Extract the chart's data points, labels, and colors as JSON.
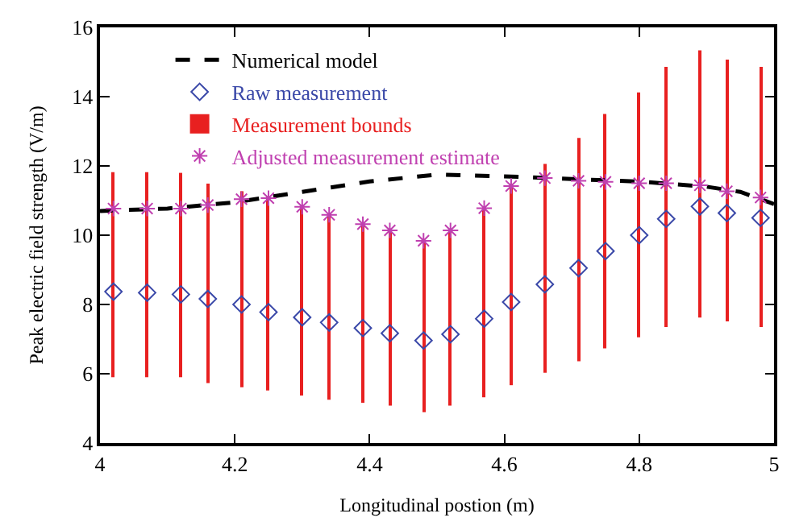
{
  "chart_data": {
    "type": "scatter",
    "xlabel": "Longitudinal postion (m)",
    "ylabel": "Peak electric field strength (V/m)",
    "x": [
      4.02,
      4.07,
      4.12,
      4.16,
      4.21,
      4.25,
      4.3,
      4.34,
      4.39,
      4.43,
      4.48,
      4.52,
      4.57,
      4.61,
      4.66,
      4.71,
      4.75,
      4.8,
      4.84,
      4.89,
      4.93,
      4.98
    ],
    "series": [
      {
        "name": "Numerical model",
        "type": "line",
        "color": "#000000",
        "line_style": "dashed",
        "marker": "none",
        "x": [
          4.0,
          4.1,
          4.2,
          4.3,
          4.4,
          4.5,
          4.6,
          4.7,
          4.8,
          4.9,
          4.95,
          5.0
        ],
        "values": [
          10.7,
          10.77,
          10.95,
          11.25,
          11.55,
          11.75,
          11.7,
          11.62,
          11.55,
          11.4,
          11.25,
          10.9
        ]
      },
      {
        "name": "Raw measurement",
        "color": "#3a48a8",
        "marker": "diamond",
        "values": [
          8.37,
          8.34,
          8.29,
          8.16,
          8.0,
          7.78,
          7.63,
          7.48,
          7.32,
          7.17,
          6.96,
          7.14,
          7.59,
          8.07,
          8.58,
          9.05,
          9.54,
          10.0,
          10.47,
          10.83,
          10.64,
          10.5
        ]
      },
      {
        "name": "Measurement bounds",
        "type": "bar",
        "color": "#e82020",
        "base": [
          5.9,
          5.9,
          5.9,
          5.73,
          5.61,
          5.52,
          5.37,
          5.25,
          5.16,
          5.08,
          4.89,
          5.08,
          5.32,
          5.67,
          6.03,
          6.36,
          6.73,
          7.05,
          7.35,
          7.62,
          7.51,
          7.35
        ],
        "values": [
          5.92,
          5.92,
          5.9,
          5.76,
          5.66,
          5.6,
          5.45,
          5.34,
          5.16,
          5.06,
          4.95,
          5.06,
          5.46,
          5.82,
          6.03,
          6.45,
          6.77,
          7.07,
          7.51,
          7.72,
          7.56,
          7.51
        ]
      },
      {
        "name": "Adjusted measurement estimate",
        "color": "#c040b0",
        "marker": "cross",
        "values": [
          10.77,
          10.77,
          10.77,
          10.87,
          11.04,
          11.07,
          10.82,
          10.59,
          10.32,
          10.14,
          9.84,
          10.14,
          10.78,
          11.42,
          11.65,
          11.57,
          11.54,
          11.5,
          11.5,
          11.44,
          11.27,
          11.09
        ]
      }
    ],
    "xlim": [
      4,
      5
    ],
    "xticks": [
      4,
      4.2,
      4.4,
      4.6,
      4.8,
      5
    ],
    "ylim": [
      4,
      16
    ],
    "yticks": [
      4,
      6,
      8,
      10,
      12,
      14,
      16
    ],
    "legend": "top left"
  }
}
